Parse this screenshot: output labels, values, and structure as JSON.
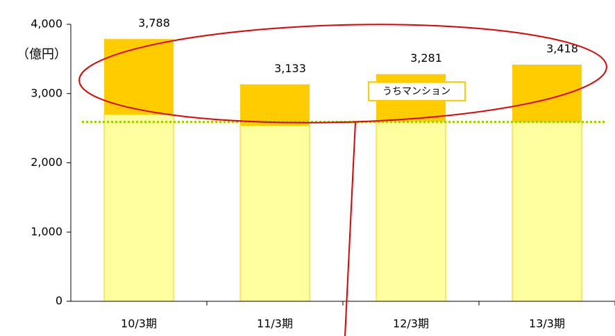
{
  "chart_data": {
    "type": "stacked_bar",
    "y_unit_label": "（億円）",
    "categories": [
      "10/3期",
      "11/3期",
      "12/3期",
      "13/3期"
    ],
    "series": [
      {
        "color": "#ffff9f",
        "values": [
          2700,
          2540,
          2600,
          2590
        ]
      },
      {
        "name": "うちマンション",
        "color": "#ffcc00",
        "values": [
          1088,
          593,
          681,
          828
        ]
      }
    ],
    "totals": [
      3788,
      3133,
      3281,
      3418
    ],
    "total_labels": [
      "3,788",
      "3,133",
      "3,281",
      "3,418"
    ],
    "reference_line": {
      "value": 2590,
      "color": "#99cc00"
    },
    "annotation": "うちマンション",
    "ylim": [
      0,
      4000
    ],
    "yticks": [
      0,
      {
        "value": 1000,
        "label": "1,000"
      },
      {
        "value": 2000,
        "label": "2,000"
      },
      {
        "value": 3000,
        "label": "3,000"
      },
      {
        "value": 4000,
        "label": "4,000"
      }
    ]
  }
}
